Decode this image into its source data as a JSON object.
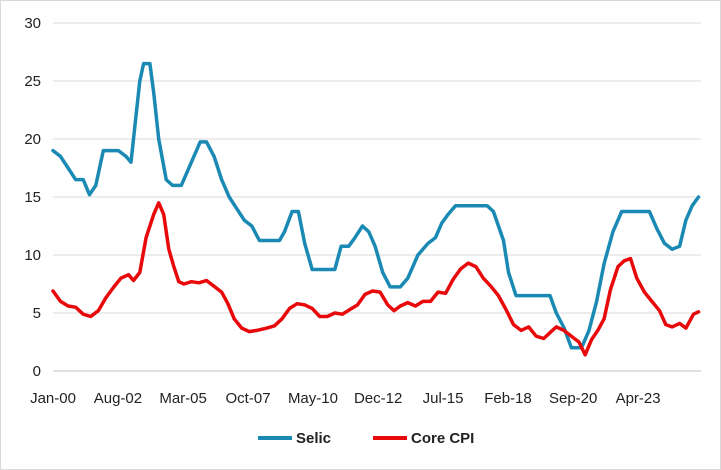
{
  "chart_data": {
    "type": "line",
    "title": "",
    "xlabel": "",
    "ylabel": "",
    "ylim": [
      0,
      30
    ],
    "yticks": [
      0,
      5,
      10,
      15,
      20,
      25,
      30
    ],
    "grid": "horizontal",
    "legend_position": "bottom",
    "x_ticks": [
      {
        "label": "Jan-00",
        "x": 2000.0
      },
      {
        "label": "Aug-02",
        "x": 2002.58
      },
      {
        "label": "Mar-05",
        "x": 2005.17
      },
      {
        "label": "Oct-07",
        "x": 2007.75
      },
      {
        "label": "May-10",
        "x": 2010.33
      },
      {
        "label": "Dec-12",
        "x": 2012.92
      },
      {
        "label": "Jul-15",
        "x": 2015.5
      },
      {
        "label": "Feb-18",
        "x": 2018.08
      },
      {
        "label": "Sep-20",
        "x": 2020.67
      },
      {
        "label": "Apr-23",
        "x": 2023.25
      }
    ],
    "series": [
      {
        "name": "Selic",
        "color": "#1a8ab4",
        "points": [
          [
            2000.0,
            19.0
          ],
          [
            2000.3,
            18.5
          ],
          [
            2000.6,
            17.5
          ],
          [
            2000.9,
            16.5
          ],
          [
            2001.2,
            16.5
          ],
          [
            2001.45,
            15.2
          ],
          [
            2001.7,
            16.0
          ],
          [
            2002.0,
            19.0
          ],
          [
            2002.3,
            19.0
          ],
          [
            2002.6,
            19.0
          ],
          [
            2002.9,
            18.5
          ],
          [
            2003.1,
            18.0
          ],
          [
            2003.3,
            22.0
          ],
          [
            2003.45,
            25.0
          ],
          [
            2003.6,
            26.5
          ],
          [
            2003.85,
            26.5
          ],
          [
            2004.0,
            24.0
          ],
          [
            2004.2,
            20.0
          ],
          [
            2004.5,
            16.5
          ],
          [
            2004.75,
            16.0
          ],
          [
            2005.1,
            16.0
          ],
          [
            2005.5,
            18.0
          ],
          [
            2005.85,
            19.75
          ],
          [
            2006.1,
            19.75
          ],
          [
            2006.4,
            18.5
          ],
          [
            2006.7,
            16.5
          ],
          [
            2007.0,
            15.0
          ],
          [
            2007.3,
            14.0
          ],
          [
            2007.6,
            13.0
          ],
          [
            2007.9,
            12.5
          ],
          [
            2008.2,
            11.25
          ],
          [
            2008.6,
            11.25
          ],
          [
            2009.0,
            11.25
          ],
          [
            2009.2,
            12.0
          ],
          [
            2009.5,
            13.75
          ],
          [
            2009.75,
            13.75
          ],
          [
            2010.0,
            11.0
          ],
          [
            2010.3,
            8.75
          ],
          [
            2010.6,
            8.75
          ],
          [
            2010.9,
            8.75
          ],
          [
            2011.2,
            8.75
          ],
          [
            2011.45,
            10.75
          ],
          [
            2011.75,
            10.75
          ],
          [
            2012.0,
            11.5
          ],
          [
            2012.3,
            12.5
          ],
          [
            2012.55,
            12.0
          ],
          [
            2012.8,
            10.75
          ],
          [
            2013.1,
            8.5
          ],
          [
            2013.4,
            7.25
          ],
          [
            2013.8,
            7.25
          ],
          [
            2014.1,
            8.0
          ],
          [
            2014.5,
            10.0
          ],
          [
            2014.9,
            11.0
          ],
          [
            2015.2,
            11.5
          ],
          [
            2015.45,
            12.75
          ],
          [
            2015.7,
            13.5
          ],
          [
            2016.0,
            14.25
          ],
          [
            2016.5,
            14.25
          ],
          [
            2016.9,
            14.25
          ],
          [
            2017.25,
            14.25
          ],
          [
            2017.5,
            13.75
          ],
          [
            2017.9,
            11.25
          ],
          [
            2018.1,
            8.5
          ],
          [
            2018.4,
            6.5
          ],
          [
            2018.9,
            6.5
          ],
          [
            2019.3,
            6.5
          ],
          [
            2019.75,
            6.5
          ],
          [
            2020.0,
            5.0
          ],
          [
            2020.3,
            3.75
          ],
          [
            2020.6,
            2.0
          ],
          [
            2021.0,
            2.0
          ],
          [
            2021.3,
            3.5
          ],
          [
            2021.6,
            6.0
          ],
          [
            2021.9,
            9.25
          ],
          [
            2022.25,
            12.0
          ],
          [
            2022.6,
            13.75
          ],
          [
            2023.0,
            13.75
          ],
          [
            2023.3,
            13.75
          ],
          [
            2023.7,
            13.75
          ],
          [
            2024.0,
            12.25
          ],
          [
            2024.3,
            11.0
          ],
          [
            2024.6,
            10.5
          ],
          [
            2024.9,
            10.75
          ],
          [
            2025.15,
            13.0
          ],
          [
            2025.4,
            14.25
          ],
          [
            2025.65,
            15.0
          ]
        ]
      },
      {
        "name": "Core CPI",
        "color": "#e8090b",
        "points": [
          [
            2000.0,
            6.9
          ],
          [
            2000.3,
            6.0
          ],
          [
            2000.6,
            5.6
          ],
          [
            2000.9,
            5.5
          ],
          [
            2001.2,
            4.9
          ],
          [
            2001.5,
            4.7
          ],
          [
            2001.8,
            5.2
          ],
          [
            2002.1,
            6.3
          ],
          [
            2002.4,
            7.2
          ],
          [
            2002.7,
            8.0
          ],
          [
            2003.0,
            8.3
          ],
          [
            2003.2,
            7.8
          ],
          [
            2003.45,
            8.5
          ],
          [
            2003.7,
            11.5
          ],
          [
            2004.0,
            13.5
          ],
          [
            2004.2,
            14.5
          ],
          [
            2004.4,
            13.5
          ],
          [
            2004.6,
            10.5
          ],
          [
            2004.8,
            9.0
          ],
          [
            2005.0,
            7.7
          ],
          [
            2005.2,
            7.5
          ],
          [
            2005.5,
            7.7
          ],
          [
            2005.8,
            7.6
          ],
          [
            2006.1,
            7.8
          ],
          [
            2006.4,
            7.3
          ],
          [
            2006.7,
            6.8
          ],
          [
            2006.95,
            5.8
          ],
          [
            2007.2,
            4.5
          ],
          [
            2007.5,
            3.7
          ],
          [
            2007.8,
            3.4
          ],
          [
            2008.1,
            3.5
          ],
          [
            2008.5,
            3.7
          ],
          [
            2008.8,
            3.9
          ],
          [
            2009.1,
            4.5
          ],
          [
            2009.4,
            5.4
          ],
          [
            2009.7,
            5.8
          ],
          [
            2010.0,
            5.7
          ],
          [
            2010.3,
            5.4
          ],
          [
            2010.6,
            4.7
          ],
          [
            2010.9,
            4.7
          ],
          [
            2011.2,
            5.0
          ],
          [
            2011.5,
            4.9
          ],
          [
            2011.8,
            5.3
          ],
          [
            2012.1,
            5.7
          ],
          [
            2012.4,
            6.6
          ],
          [
            2012.7,
            6.9
          ],
          [
            2013.0,
            6.8
          ],
          [
            2013.3,
            5.7
          ],
          [
            2013.55,
            5.2
          ],
          [
            2013.8,
            5.6
          ],
          [
            2014.1,
            5.9
          ],
          [
            2014.4,
            5.6
          ],
          [
            2014.7,
            6.0
          ],
          [
            2015.0,
            6.0
          ],
          [
            2015.3,
            6.8
          ],
          [
            2015.6,
            6.7
          ],
          [
            2015.9,
            7.9
          ],
          [
            2016.2,
            8.8
          ],
          [
            2016.5,
            9.3
          ],
          [
            2016.8,
            9.0
          ],
          [
            2017.1,
            8.0
          ],
          [
            2017.4,
            7.3
          ],
          [
            2017.7,
            6.5
          ],
          [
            2018.0,
            5.3
          ],
          [
            2018.3,
            4.0
          ],
          [
            2018.6,
            3.5
          ],
          [
            2018.9,
            3.8
          ],
          [
            2019.2,
            3.0
          ],
          [
            2019.5,
            2.8
          ],
          [
            2019.75,
            3.3
          ],
          [
            2020.0,
            3.8
          ],
          [
            2020.3,
            3.5
          ],
          [
            2020.6,
            3.0
          ],
          [
            2020.9,
            2.5
          ],
          [
            2021.15,
            1.4
          ],
          [
            2021.4,
            2.7
          ],
          [
            2021.65,
            3.5
          ],
          [
            2021.9,
            4.5
          ],
          [
            2022.15,
            7.0
          ],
          [
            2022.45,
            9.0
          ],
          [
            2022.7,
            9.5
          ],
          [
            2022.95,
            9.7
          ],
          [
            2023.2,
            8.0
          ],
          [
            2023.5,
            6.8
          ],
          [
            2023.8,
            6.0
          ],
          [
            2024.1,
            5.2
          ],
          [
            2024.35,
            4.0
          ],
          [
            2024.6,
            3.8
          ],
          [
            2024.9,
            4.1
          ],
          [
            2025.15,
            3.7
          ],
          [
            2025.45,
            4.9
          ],
          [
            2025.65,
            5.1
          ]
        ]
      }
    ]
  }
}
